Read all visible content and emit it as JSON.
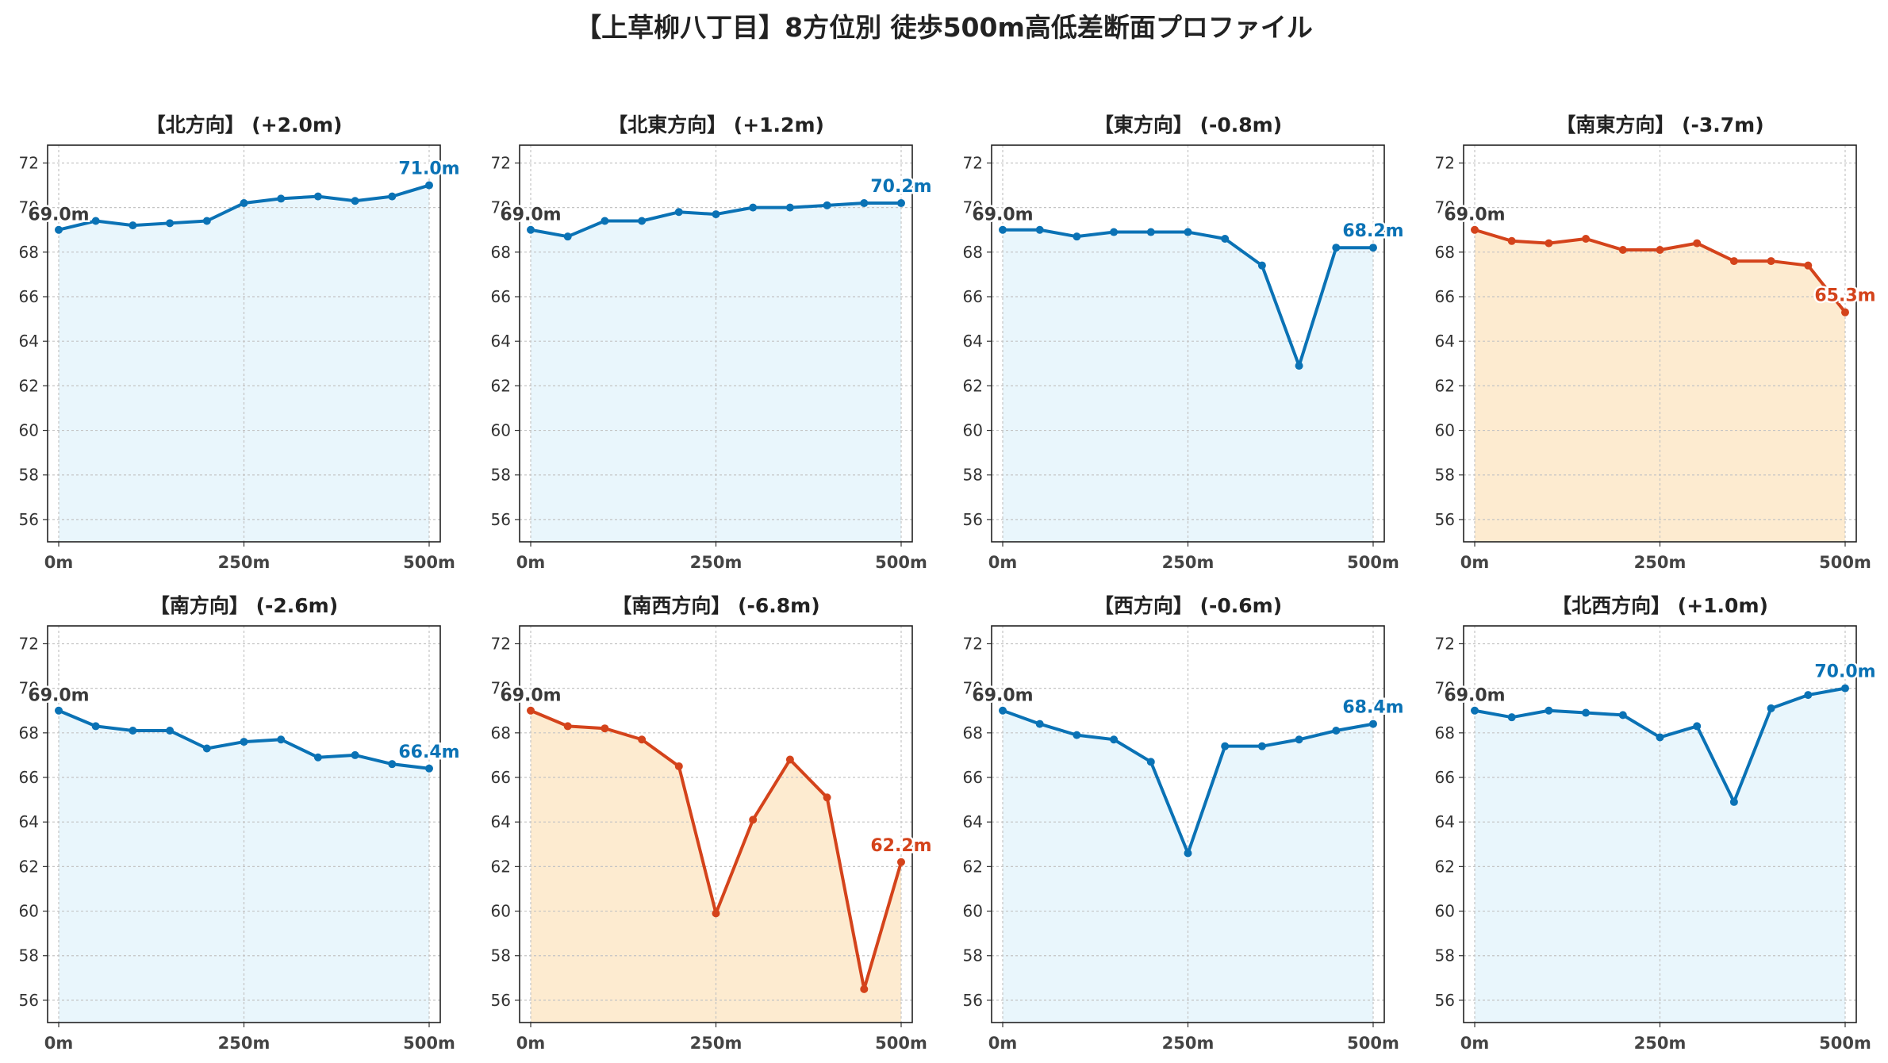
{
  "title": "【上草柳八丁目】8方位別 徒歩500m高低差断面プロファイル",
  "colors": {
    "up": "#0a72b5",
    "down": "#d4431b",
    "fill_up": "#e9f6fc",
    "fill_down": "#fdebd0",
    "start_label": "#3a3a3a"
  },
  "chart_data": [
    {
      "type": "line",
      "title": "【北方向】 (+2.0m)",
      "trend": "up",
      "x": [
        0,
        50,
        100,
        150,
        200,
        250,
        300,
        350,
        400,
        450,
        500
      ],
      "y": [
        69.0,
        69.4,
        69.2,
        69.3,
        69.4,
        70.2,
        70.4,
        70.5,
        70.3,
        70.5,
        71.0
      ],
      "start_label": "69.0m",
      "end_label": "71.0m",
      "xticks": [
        0,
        250,
        500
      ],
      "xtick_labels": [
        "0m",
        "250m",
        "500m"
      ],
      "yticks": [
        56,
        58,
        60,
        62,
        64,
        66,
        68,
        70,
        72
      ],
      "xlim": [
        -15,
        515
      ],
      "ylim": [
        55,
        72.8
      ],
      "grid": true
    },
    {
      "type": "line",
      "title": "【北東方向】 (+1.2m)",
      "trend": "up",
      "x": [
        0,
        50,
        100,
        150,
        200,
        250,
        300,
        350,
        400,
        450,
        500
      ],
      "y": [
        69.0,
        68.7,
        69.4,
        69.4,
        69.8,
        69.7,
        70.0,
        70.0,
        70.1,
        70.2,
        70.2
      ],
      "start_label": "69.0m",
      "end_label": "70.2m",
      "xticks": [
        0,
        250,
        500
      ],
      "xtick_labels": [
        "0m",
        "250m",
        "500m"
      ],
      "yticks": [
        56,
        58,
        60,
        62,
        64,
        66,
        68,
        70,
        72
      ],
      "xlim": [
        -15,
        515
      ],
      "ylim": [
        55,
        72.8
      ],
      "grid": true
    },
    {
      "type": "line",
      "title": "【東方向】 (-0.8m)",
      "trend": "up",
      "x": [
        0,
        50,
        100,
        150,
        200,
        250,
        300,
        350,
        400,
        450,
        500
      ],
      "y": [
        69.0,
        69.0,
        68.7,
        68.9,
        68.9,
        68.9,
        68.6,
        67.4,
        62.9,
        68.2,
        68.2
      ],
      "start_label": "69.0m",
      "end_label": "68.2m",
      "xticks": [
        0,
        250,
        500
      ],
      "xtick_labels": [
        "0m",
        "250m",
        "500m"
      ],
      "yticks": [
        56,
        58,
        60,
        62,
        64,
        66,
        68,
        70,
        72
      ],
      "xlim": [
        -15,
        515
      ],
      "ylim": [
        55,
        72.8
      ],
      "grid": true
    },
    {
      "type": "line",
      "title": "【南東方向】 (-3.7m)",
      "trend": "down",
      "x": [
        0,
        50,
        100,
        150,
        200,
        250,
        300,
        350,
        400,
        450,
        500
      ],
      "y": [
        69.0,
        68.5,
        68.4,
        68.6,
        68.1,
        68.1,
        68.4,
        67.6,
        67.6,
        67.4,
        65.3
      ],
      "start_label": "69.0m",
      "end_label": "65.3m",
      "xticks": [
        0,
        250,
        500
      ],
      "xtick_labels": [
        "0m",
        "250m",
        "500m"
      ],
      "yticks": [
        56,
        58,
        60,
        62,
        64,
        66,
        68,
        70,
        72
      ],
      "xlim": [
        -15,
        515
      ],
      "ylim": [
        55,
        72.8
      ],
      "grid": true
    },
    {
      "type": "line",
      "title": "【南方向】 (-2.6m)",
      "trend": "up",
      "x": [
        0,
        50,
        100,
        150,
        200,
        250,
        300,
        350,
        400,
        450,
        500
      ],
      "y": [
        69.0,
        68.3,
        68.1,
        68.1,
        67.3,
        67.6,
        67.7,
        66.9,
        67.0,
        66.6,
        66.4
      ],
      "start_label": "69.0m",
      "end_label": "66.4m",
      "xticks": [
        0,
        250,
        500
      ],
      "xtick_labels": [
        "0m",
        "250m",
        "500m"
      ],
      "yticks": [
        56,
        58,
        60,
        62,
        64,
        66,
        68,
        70,
        72
      ],
      "xlim": [
        -15,
        515
      ],
      "ylim": [
        55,
        72.8
      ],
      "grid": true
    },
    {
      "type": "line",
      "title": "【南西方向】 (-6.8m)",
      "trend": "down",
      "x": [
        0,
        50,
        100,
        150,
        200,
        250,
        300,
        350,
        400,
        450,
        500
      ],
      "y": [
        69.0,
        68.3,
        68.2,
        67.7,
        66.5,
        59.9,
        64.1,
        66.8,
        65.1,
        56.5,
        62.2
      ],
      "start_label": "69.0m",
      "end_label": "62.2m",
      "xticks": [
        0,
        250,
        500
      ],
      "xtick_labels": [
        "0m",
        "250m",
        "500m"
      ],
      "yticks": [
        56,
        58,
        60,
        62,
        64,
        66,
        68,
        70,
        72
      ],
      "xlim": [
        -15,
        515
      ],
      "ylim": [
        55,
        72.8
      ],
      "grid": true
    },
    {
      "type": "line",
      "title": "【西方向】 (-0.6m)",
      "trend": "up",
      "x": [
        0,
        50,
        100,
        150,
        200,
        250,
        300,
        350,
        400,
        450,
        500
      ],
      "y": [
        69.0,
        68.4,
        67.9,
        67.7,
        66.7,
        62.6,
        67.4,
        67.4,
        67.7,
        68.1,
        68.4
      ],
      "start_label": "69.0m",
      "end_label": "68.4m",
      "xticks": [
        0,
        250,
        500
      ],
      "xtick_labels": [
        "0m",
        "250m",
        "500m"
      ],
      "yticks": [
        56,
        58,
        60,
        62,
        64,
        66,
        68,
        70,
        72
      ],
      "xlim": [
        -15,
        515
      ],
      "ylim": [
        55,
        72.8
      ],
      "grid": true
    },
    {
      "type": "line",
      "title": "【北西方向】 (+1.0m)",
      "trend": "up",
      "x": [
        0,
        50,
        100,
        150,
        200,
        250,
        300,
        350,
        400,
        450,
        500
      ],
      "y": [
        69.0,
        68.7,
        69.0,
        68.9,
        68.8,
        67.8,
        68.3,
        64.9,
        69.1,
        69.7,
        70.0
      ],
      "start_label": "69.0m",
      "end_label": "70.0m",
      "xticks": [
        0,
        250,
        500
      ],
      "xtick_labels": [
        "0m",
        "250m",
        "500m"
      ],
      "yticks": [
        56,
        58,
        60,
        62,
        64,
        66,
        68,
        70,
        72
      ],
      "xlim": [
        -15,
        515
      ],
      "ylim": [
        55,
        72.8
      ],
      "grid": true
    }
  ]
}
